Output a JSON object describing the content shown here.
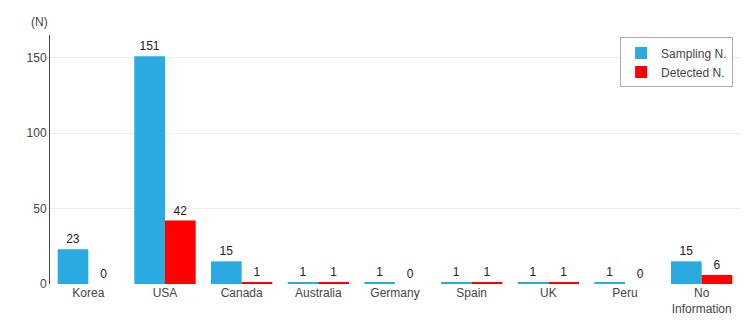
{
  "chart_data": {
    "type": "bar",
    "categories": [
      "Korea",
      "USA",
      "Canada",
      "Australia",
      "Germany",
      "Spain",
      "UK",
      "Peru",
      "No\nInformation"
    ],
    "series": [
      {
        "name": "Sampling N.",
        "color": "#29ABE2",
        "values": [
          23,
          151,
          15,
          1,
          1,
          1,
          1,
          1,
          15
        ]
      },
      {
        "name": "Detected N.",
        "color": "#FF0000",
        "values": [
          0,
          42,
          1,
          1,
          0,
          1,
          1,
          0,
          6
        ]
      }
    ],
    "ylim": [
      0,
      165
    ],
    "yticks": [
      0,
      50,
      100,
      150
    ],
    "grid": true,
    "legend": "upper right",
    "data_labels": true,
    "annotations": [
      "(N)"
    ]
  }
}
